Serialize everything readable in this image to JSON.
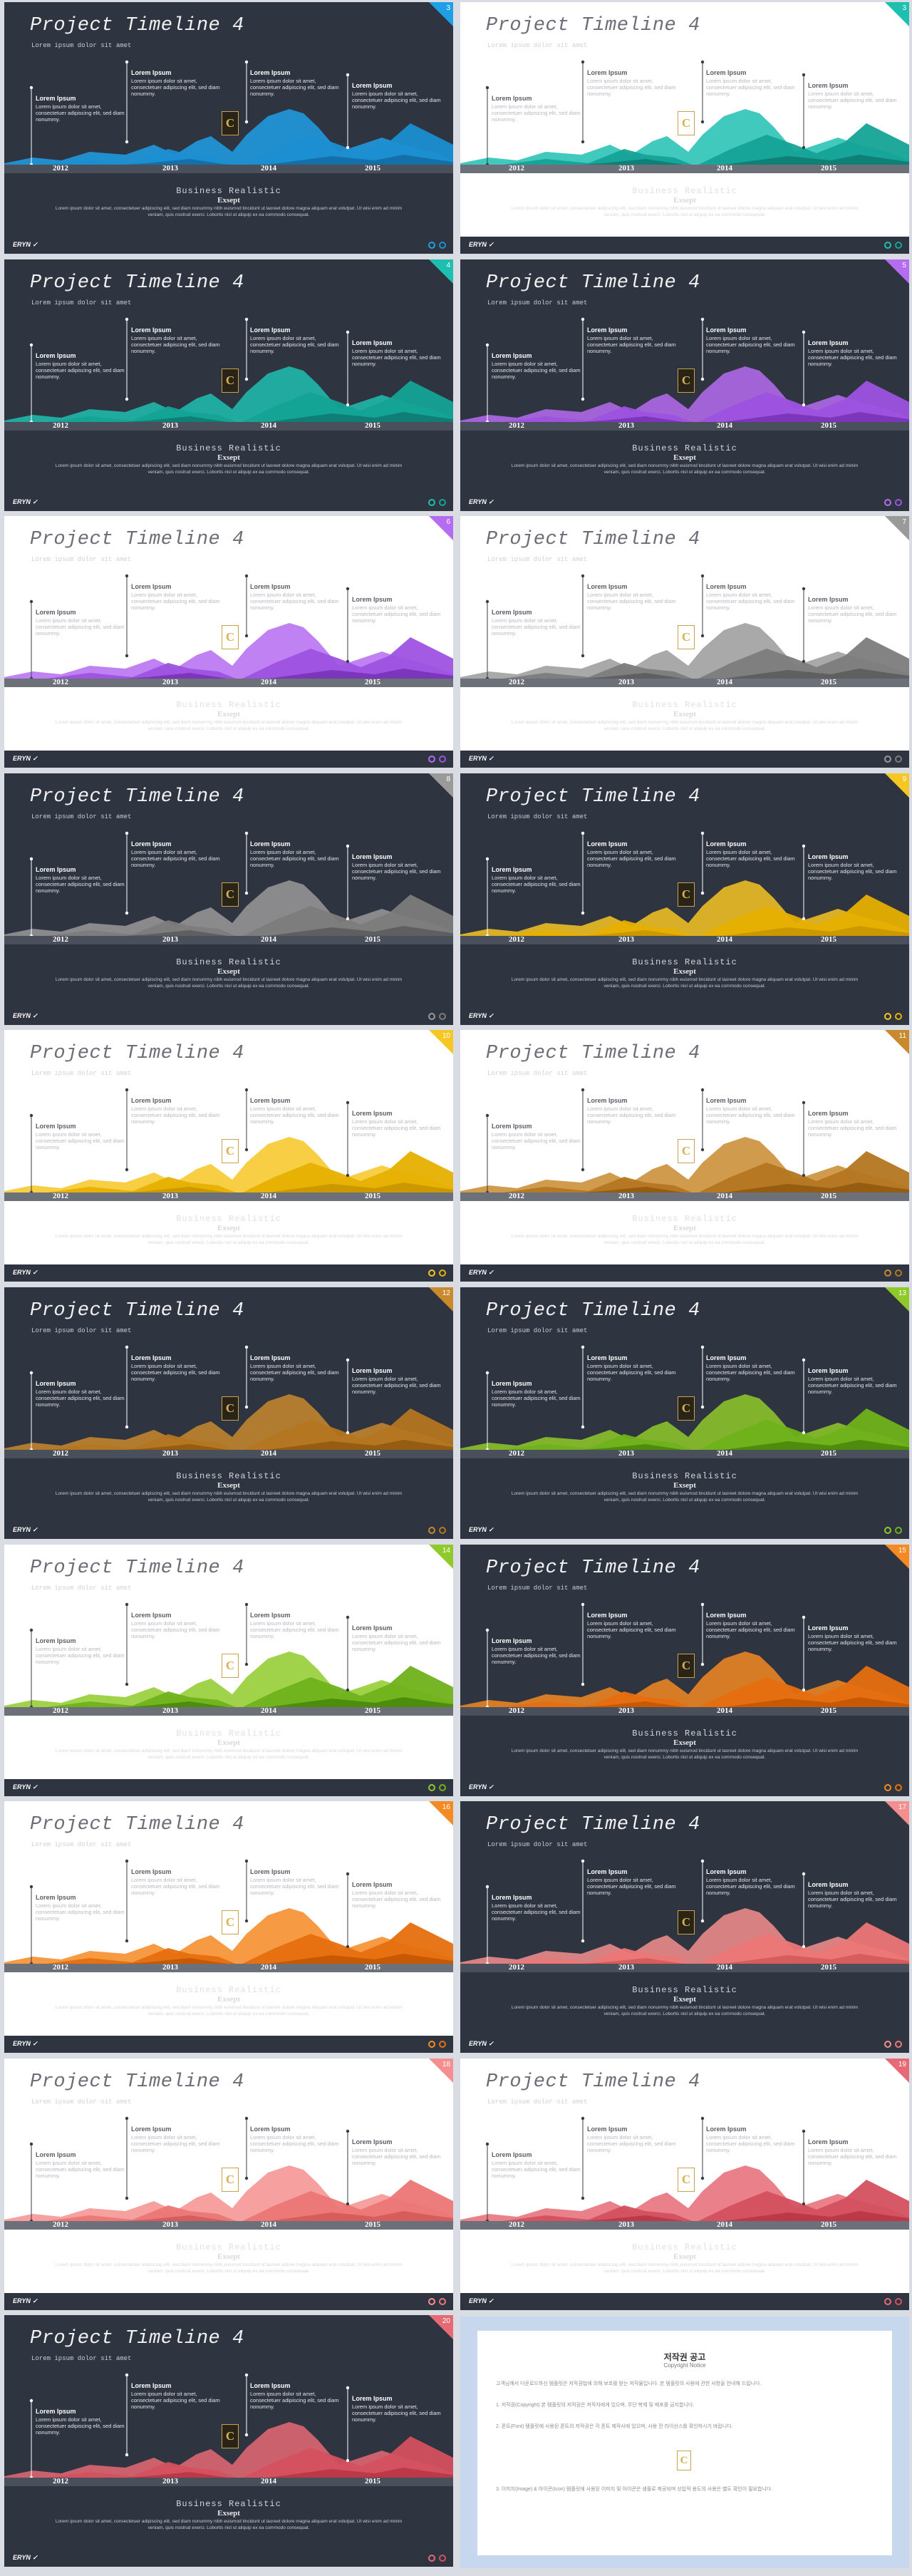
{
  "slides": [
    {
      "num": "3",
      "theme": "dark",
      "colors": [
        "#1fa0e6",
        "#1b8fd1",
        "#156fa8"
      ]
    },
    {
      "num": "3",
      "theme": "light",
      "colors": [
        "#1fbfb0",
        "#14a396",
        "#0f7d74"
      ]
    },
    {
      "num": "4",
      "theme": "dark",
      "colors": [
        "#1fbfb0",
        "#14a396",
        "#0f7d74"
      ]
    },
    {
      "num": "5",
      "theme": "dark",
      "colors": [
        "#b56cf0",
        "#9d52e0",
        "#7a35b8"
      ]
    },
    {
      "num": "6",
      "theme": "light",
      "colors": [
        "#b56cf0",
        "#9d52e0",
        "#7a35b8"
      ]
    },
    {
      "num": "7",
      "theme": "light",
      "colors": [
        "#9a9a9a",
        "#7c7c7c",
        "#5e5e5e"
      ]
    },
    {
      "num": "8",
      "theme": "dark",
      "colors": [
        "#9a9a9a",
        "#7c7c7c",
        "#5e5e5e"
      ]
    },
    {
      "num": "9",
      "theme": "dark",
      "colors": [
        "#f6c623",
        "#e6b000",
        "#c99700"
      ]
    },
    {
      "num": "10",
      "theme": "light",
      "colors": [
        "#f6c623",
        "#e6b000",
        "#c99700"
      ]
    },
    {
      "num": "11",
      "theme": "light",
      "colors": [
        "#c98a2e",
        "#b47620",
        "#935c12"
      ]
    },
    {
      "num": "12",
      "theme": "dark",
      "colors": [
        "#c98a2e",
        "#b47620",
        "#935c12"
      ]
    },
    {
      "num": "13",
      "theme": "dark",
      "colors": [
        "#8fca2a",
        "#6fb21a",
        "#4c8a0d"
      ]
    },
    {
      "num": "14",
      "theme": "light",
      "colors": [
        "#8fca2a",
        "#6fb21a",
        "#4c8a0d"
      ]
    },
    {
      "num": "15",
      "theme": "dark",
      "colors": [
        "#f58a22",
        "#e66f0f",
        "#c55705"
      ]
    },
    {
      "num": "16",
      "theme": "light",
      "colors": [
        "#f58a22",
        "#e66f0f",
        "#c55705"
      ]
    },
    {
      "num": "17",
      "theme": "dark",
      "colors": [
        "#f58f8f",
        "#ec7676",
        "#d65c5c"
      ]
    },
    {
      "num": "18",
      "theme": "light",
      "colors": [
        "#f58f8f",
        "#ec7676",
        "#d65c5c"
      ]
    },
    {
      "num": "19",
      "theme": "light",
      "colors": [
        "#e56a76",
        "#d4505f",
        "#b93848"
      ]
    },
    {
      "num": "20",
      "theme": "dark",
      "colors": [
        "#e56a76",
        "#d4505f",
        "#b93848"
      ]
    }
  ],
  "common": {
    "title": "Project Timeline 4",
    "subtitle": "Lorem ipsum dolor sit amet",
    "years": [
      "2012",
      "2013",
      "2014",
      "2015"
    ],
    "card_title": "Lorem Ipsum",
    "card_text": "Lorem ipsum dolor sit amet, consectetuer adipiscing elit, sed diam nonummy.",
    "badge": "C",
    "foot_title": "Business Realistic",
    "foot_sub": "Exsept",
    "foot_body": "Lorem ipsum dolor sit amet, consectetuer adipiscing elit, sed diam nonummy nibh euismod tincidunt ut laoreet dolore magna aliquam erat volutpat. Ut wisi enim ad minim veniam, quis nostrud exerci. Lobortis nisl ut aliquip ex ea commodo consequat.",
    "brand": "ERYN ✓"
  },
  "copyright": {
    "title": "저작권 공고",
    "subtitle": "Copyright Notice",
    "badge": "C",
    "paragraphs": [
      "고객님께서 다운로드하신 템플릿은 저작권법에 의해 보호를 받는 저작물입니다. 본 템플릿의 사용에 관한 사항을 안내해 드립니다.",
      "1. 저작권(Copyright) 본 템플릿의 저작권은 저작자에게 있으며, 무단 복제 및 배포를 금지합니다.",
      "2. 폰트(Font) 템플릿에 사용된 폰트의 저작권은 각 폰트 제작사에 있으며, 사용 전 라이선스를 확인하시기 바랍니다.",
      "3. 이미지(Image) & 아이콘(Icon) 템플릿에 사용된 이미지 및 아이콘은 샘플로 제공되며 상업적 용도의 사용은 별도 확인이 필요합니다."
    ]
  }
}
